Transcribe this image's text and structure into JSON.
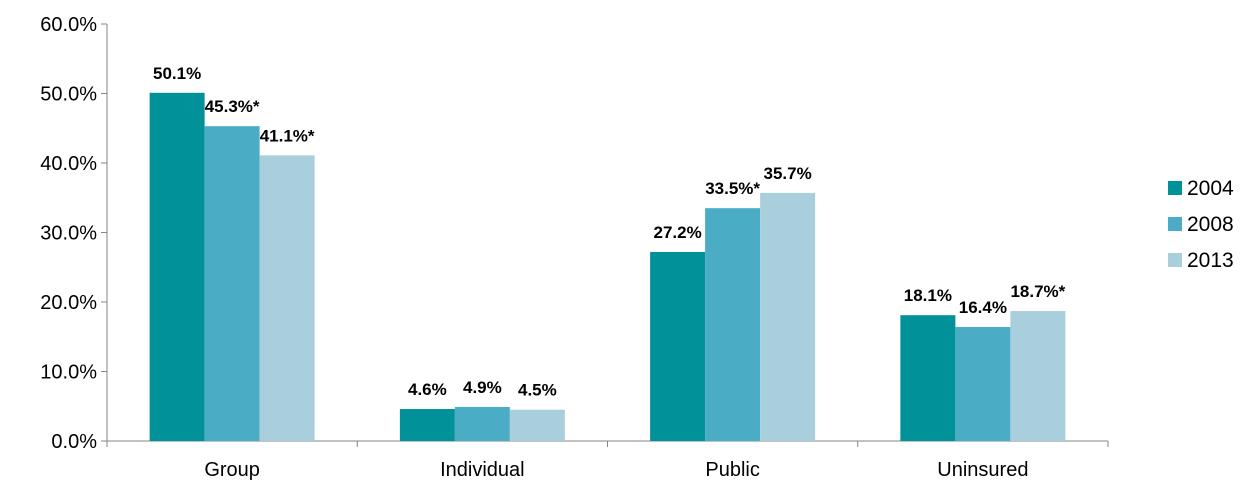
{
  "chart_data": {
    "type": "bar",
    "categories": [
      "Group",
      "Individual",
      "Public",
      "Uninsured"
    ],
    "series": [
      {
        "name": "2004",
        "color": "#009199",
        "values": [
          50.1,
          4.6,
          27.2,
          18.1
        ],
        "labels": [
          "50.1%",
          "4.6%",
          "27.2%",
          "18.1%"
        ]
      },
      {
        "name": "2008",
        "color": "#4BACC6",
        "values": [
          45.3,
          4.9,
          33.5,
          16.4
        ],
        "labels": [
          "45.3%*",
          "4.9%",
          "33.5%*",
          "16.4%"
        ]
      },
      {
        "name": "2013",
        "color": "#A9CFDC",
        "values": [
          41.1,
          4.5,
          35.7,
          18.7
        ],
        "labels": [
          "41.1%*",
          "4.5%",
          "35.7%",
          "18.7%*"
        ]
      }
    ],
    "yticks": [
      "0.0%",
      "10.0%",
      "20.0%",
      "30.0%",
      "40.0%",
      "50.0%",
      "60.0%"
    ],
    "ylim": [
      0,
      60
    ],
    "grid": false,
    "legend": "right"
  }
}
